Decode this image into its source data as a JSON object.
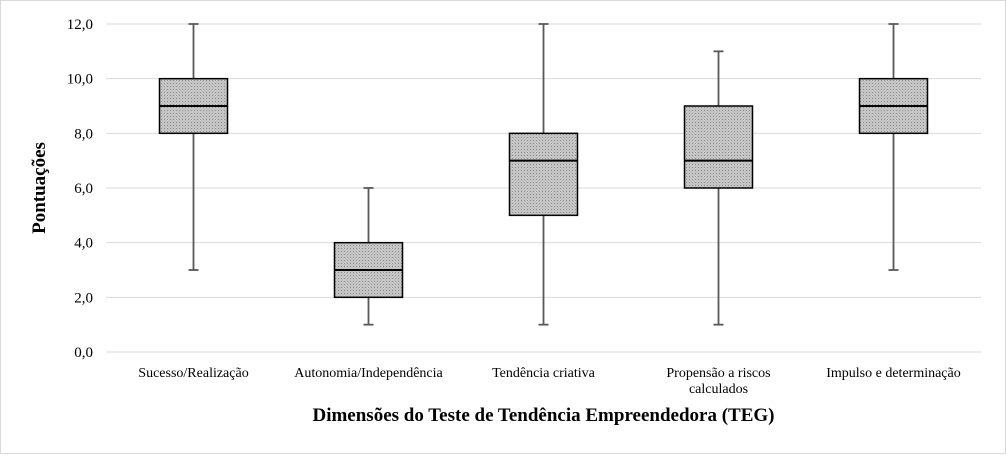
{
  "chart_data": {
    "type": "boxplot",
    "title": "",
    "xlabel": "Dimensões do Teste de Tendência Empreendedora (TEG)",
    "ylabel": "Pontuações",
    "ylim": [
      0,
      12
    ],
    "yticks": [
      "0,0",
      "2,0",
      "4,0",
      "6,0",
      "8,0",
      "10,0",
      "12,0"
    ],
    "grid": true,
    "categories": [
      [
        "Sucesso/Realização"
      ],
      [
        "Autonomia/Independência"
      ],
      [
        "Tendência criativa"
      ],
      [
        "Propensão a riscos",
        "calculados"
      ],
      [
        "Impulso e determinação"
      ]
    ],
    "boxes": [
      {
        "min": 3,
        "q1": 8,
        "median": 9,
        "q3": 10,
        "max": 12
      },
      {
        "min": 1,
        "q1": 2,
        "median": 3,
        "q3": 4,
        "max": 6
      },
      {
        "min": 1,
        "q1": 5,
        "median": 7,
        "q3": 8,
        "max": 12
      },
      {
        "min": 1,
        "q1": 6,
        "median": 7,
        "q3": 9,
        "max": 11
      },
      {
        "min": 3,
        "q1": 8,
        "median": 9,
        "q3": 10,
        "max": 12
      }
    ],
    "colors": {
      "box_fill": "#bfbfbf",
      "box_stroke": "#000000",
      "whisker": "#595959",
      "grid": "#d9d9d9"
    }
  }
}
